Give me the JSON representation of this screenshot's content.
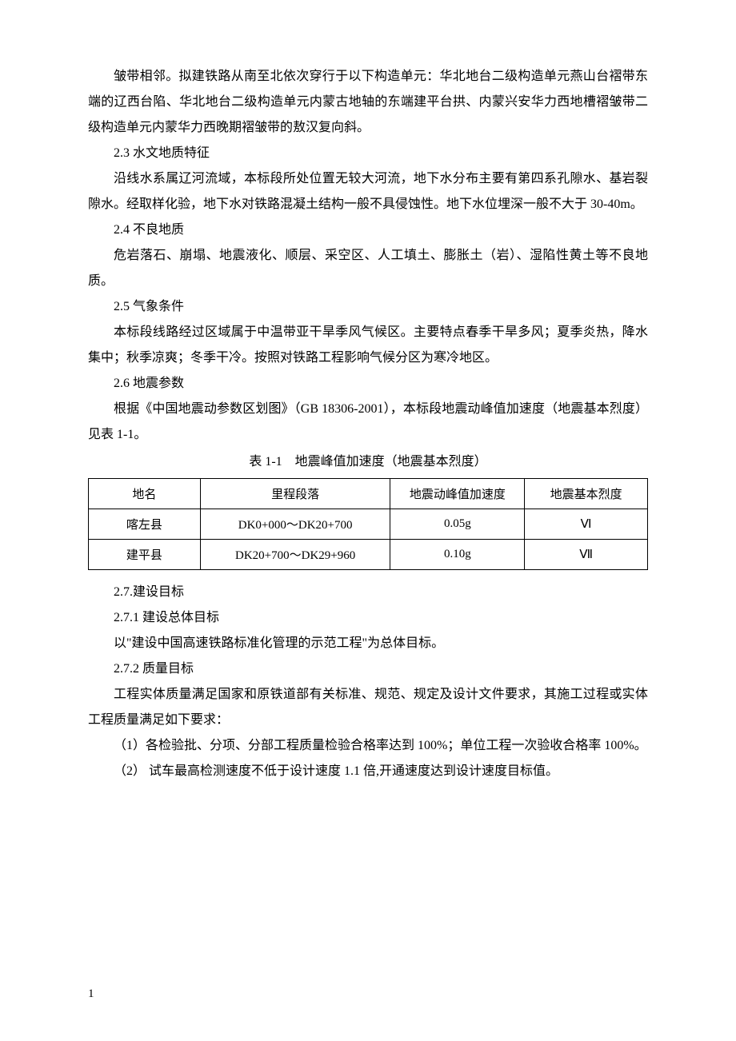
{
  "paragraphs": {
    "p1": "皱带相邻。拟建铁路从南至北依次穿行于以下构造单元：华北地台二级构造单元燕山台褶带东端的辽西台陷、华北地台二级构造单元内蒙古地轴的东端建平台拱、内蒙兴安华力西地槽褶皱带二级构造单元内蒙华力西晚期褶皱带的敖汉复向斜。",
    "h2_3": "2.3 水文地质特征",
    "p2": "沿线水系属辽河流域，本标段所处位置无较大河流，地下水分布主要有第四系孔隙水、基岩裂隙水。经取样化验，地下水对铁路混凝土结构一般不具侵蚀性。地下水位埋深一般不大于 30-40m。",
    "h2_4": "2.4 不良地质",
    "p3": "危岩落石、崩塌、地震液化、顺层、采空区、人工填土、膨胀土（岩）、湿陷性黄土等不良地质。",
    "h2_5": "2.5 气象条件",
    "p4": "本标段线路经过区域属于中温带亚干旱季风气候区。主要特点春季干旱多风；夏季炎热，降水集中；秋季凉爽；冬季干冷。按照对铁路工程影响气候分区为寒冷地区。",
    "h2_6": "2.6 地震参数",
    "p5": "根据《中国地震动参数区划图》（GB 18306-2001），本标段地震动峰值加速度（地震基本烈度）见表 1-1。",
    "table_caption": "表 1-1　地震峰值加速度（地震基本烈度）",
    "h2_7": "2.7.建设目标",
    "h2_7_1": "2.7.1 建设总体目标",
    "p6": "以\"建设中国高速铁路标准化管理的示范工程\"为总体目标。",
    "h2_7_2": "2.7.2 质量目标",
    "p7": "工程实体质量满足国家和原铁道部有关标准、规范、规定及设计文件要求，其施工过程或实体工程质量满足如下要求：",
    "p8": "（1）各检验批、分项、分部工程质量检验合格率达到 100%；单位工程一次验收合格率 100%。",
    "p9": "（2） 试车最高检测速度不低于设计速度 1.1 倍,开通速度达到设计速度目标值。"
  },
  "table": {
    "headers": [
      "地名",
      "里程段落",
      "地震动峰值加速度",
      "地震基本烈度"
    ],
    "rows": [
      [
        "喀左县",
        "DK0+000～DK20+700",
        "0.05g",
        "Ⅵ"
      ],
      [
        "建平县",
        "DK20+700～DK29+960",
        "0.10g",
        "Ⅶ"
      ]
    ]
  },
  "page_number": "1",
  "colors": {
    "background": "#ffffff",
    "text": "#000000",
    "border": "#000000"
  },
  "typography": {
    "body_fontsize": 16,
    "line_height": 2.0,
    "table_fontsize": 15
  }
}
